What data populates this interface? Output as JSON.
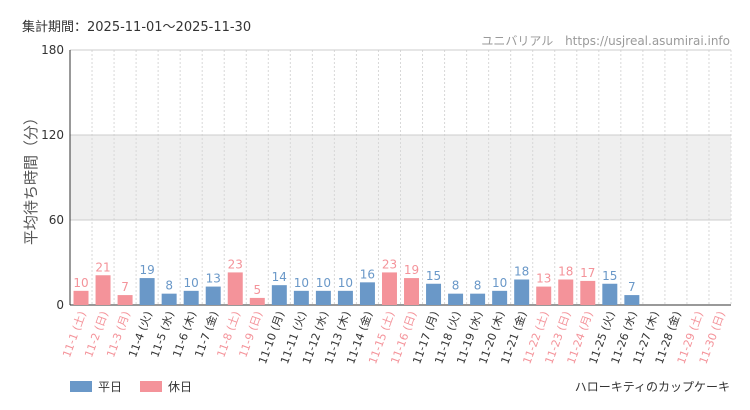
{
  "header": {
    "period_label": "集計期間：2025-11-01～2025-11-30",
    "park_name": "ユニバリアル",
    "site_url": "https://usjreal.asumirai.info"
  },
  "legend": {
    "weekday_label": "平日",
    "holiday_label": "休日"
  },
  "attraction_name": "ハローキティのカップケーキ",
  "colors": {
    "weekday": "#6a98c8",
    "holiday": "#f4939a",
    "band": "#efefef",
    "axis": "#333333"
  },
  "chart_data": {
    "type": "bar",
    "ylabel": "平均待ち時間（分）",
    "ylim": [
      0,
      180
    ],
    "yticks": [
      0,
      60,
      120,
      180
    ],
    "shaded_band": [
      60,
      120
    ],
    "categories": [
      "11-1 (土)",
      "11-2 (日)",
      "11-3 (月)",
      "11-4 (火)",
      "11-5 (水)",
      "11-6 (木)",
      "11-7 (金)",
      "11-8 (土)",
      "11-9 (日)",
      "11-10 (月)",
      "11-11 (火)",
      "11-12 (水)",
      "11-13 (木)",
      "11-14 (金)",
      "11-15 (土)",
      "11-16 (日)",
      "11-17 (月)",
      "11-18 (火)",
      "11-19 (水)",
      "11-20 (木)",
      "11-21 (金)",
      "11-22 (土)",
      "11-23 (日)",
      "11-24 (月)",
      "11-25 (火)",
      "11-26 (水)",
      "11-27 (木)",
      "11-28 (金)",
      "11-29 (土)",
      "11-30 (日)"
    ],
    "values": [
      10,
      21,
      7,
      19,
      8,
      10,
      13,
      23,
      5,
      14,
      10,
      10,
      10,
      16,
      23,
      19,
      15,
      8,
      8,
      10,
      18,
      13,
      18,
      17,
      15,
      7,
      null,
      null,
      null,
      null
    ],
    "day_type": [
      "holiday",
      "holiday",
      "holiday",
      "weekday",
      "weekday",
      "weekday",
      "weekday",
      "holiday",
      "holiday",
      "weekday",
      "weekday",
      "weekday",
      "weekday",
      "weekday",
      "holiday",
      "holiday",
      "weekday",
      "weekday",
      "weekday",
      "weekday",
      "weekday",
      "holiday",
      "holiday",
      "holiday",
      "weekday",
      "weekday",
      "weekday",
      "weekday",
      "holiday",
      "holiday"
    ],
    "series": [
      {
        "name": "平日"
      },
      {
        "name": "休日"
      }
    ]
  }
}
